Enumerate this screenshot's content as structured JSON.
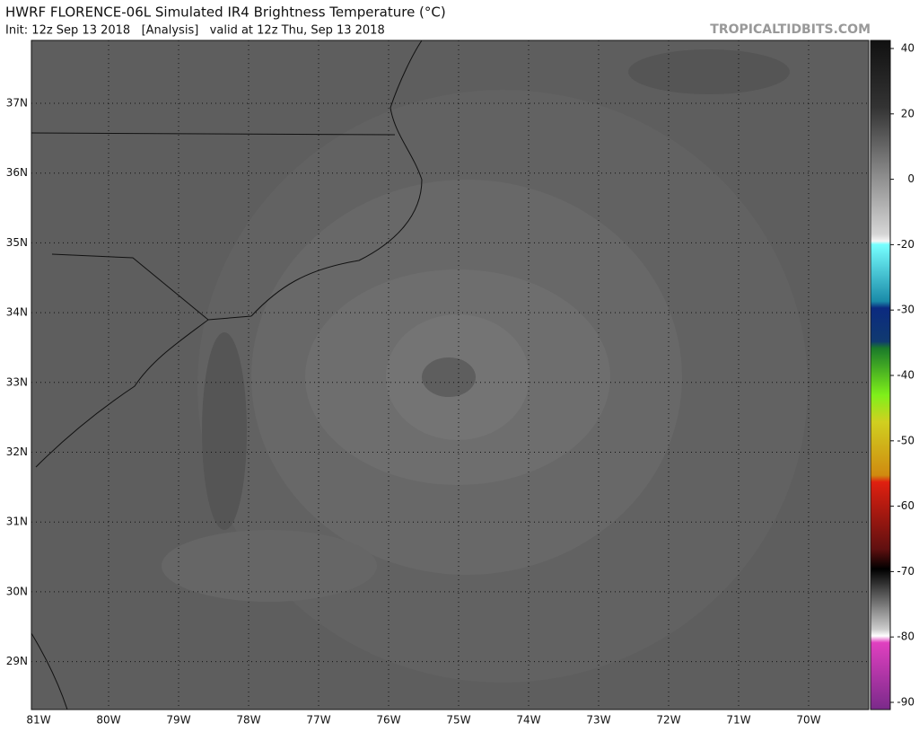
{
  "header": {
    "title": "HWRF FLORENCE-06L Simulated IR4 Brightness Temperature (°C)",
    "subtitle": "Init: 12z Sep 13 2018   [Analysis]   valid at 12z Thu, Sep 13 2018",
    "site": "TROPICALTIDBITS.COM"
  },
  "map": {
    "lat_labels": [
      "37N",
      "36N",
      "35N",
      "34N",
      "33N",
      "32N",
      "31N",
      "30N",
      "29N"
    ],
    "lon_labels": [
      "81W",
      "80W",
      "79W",
      "78W",
      "77W",
      "76W",
      "75W",
      "74W",
      "73W",
      "72W",
      "71W",
      "70W"
    ]
  },
  "colorbar": {
    "labels": [
      "40",
      "20",
      "0",
      "-20",
      "-30",
      "-40",
      "-50",
      "-60",
      "-70",
      "-80",
      "-90"
    ]
  }
}
